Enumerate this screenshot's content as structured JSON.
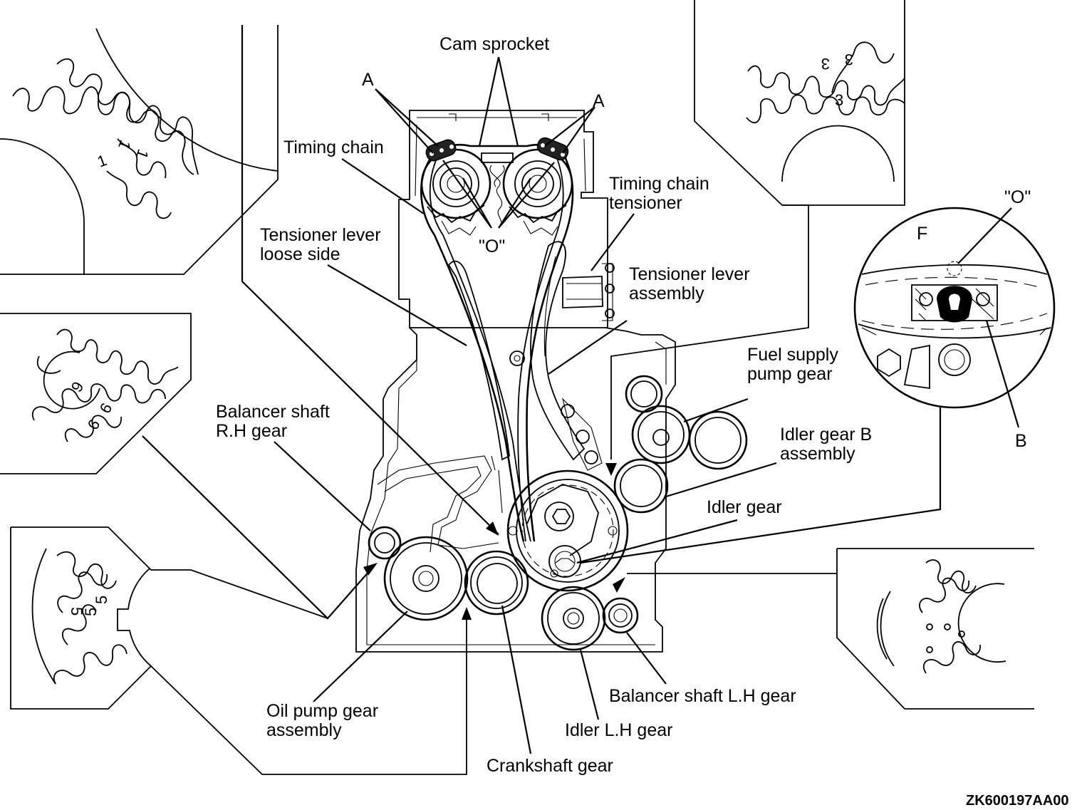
{
  "diagram_id": "ZK600197AA00",
  "labels": {
    "cam_sprocket": "Cam sprocket",
    "mark_a": "A",
    "timing_chain": "Timing chain",
    "mark_o": "\"O\"",
    "timing_chain_tensioner": [
      "Timing chain",
      "tensioner"
    ],
    "tensioner_lever_loose_side": [
      "Tensioner lever",
      "loose side"
    ],
    "tensioner_lever_assembly": [
      "Tensioner lever",
      "assembly"
    ],
    "fuel_supply_pump_gear": [
      "Fuel supply",
      "pump gear"
    ],
    "idler_gear_b_assembly": [
      "Idler gear B",
      "assembly"
    ],
    "idler_gear": "Idler gear",
    "balancer_shaft_rh_gear": [
      "Balancer shaft",
      "R.H gear"
    ],
    "oil_pump_gear_assembly": [
      "Oil pump gear",
      "assembly"
    ],
    "crankshaft_gear": "Crankshaft gear",
    "idler_lh_gear": "Idler L.H gear",
    "balancer_shaft_lh_gear": "Balancer shaft L.H gear",
    "detail_f": "F",
    "detail_b": "B"
  },
  "detail_marks": {
    "mark_1": "1",
    "mark_3": "3",
    "mark_5": "5",
    "mark_6": "6",
    "mark_9": "9"
  }
}
